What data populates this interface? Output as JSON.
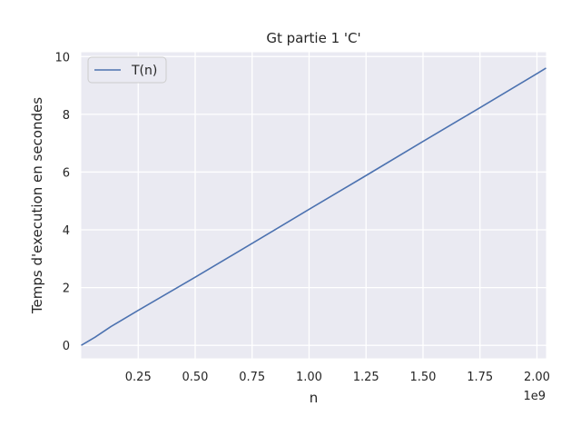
{
  "chart_data": {
    "type": "line",
    "title": "Gt partie 1 'C'",
    "xlabel": "n",
    "ylabel": "Temps d'execution en secondes",
    "x_offset_label": "1e9",
    "xlim": [
      0.0,
      2.04
    ],
    "ylim": [
      -0.45,
      10.15
    ],
    "x_ticks": [
      0.25,
      0.5,
      0.75,
      1.0,
      1.25,
      1.5,
      1.75,
      2.0
    ],
    "x_tick_labels": [
      "0.25",
      "0.50",
      "0.75",
      "1.00",
      "1.25",
      "1.50",
      "1.75",
      "2.00"
    ],
    "y_ticks": [
      0,
      2,
      4,
      6,
      8,
      10
    ],
    "y_tick_labels": [
      "0",
      "2",
      "4",
      "6",
      "8",
      "10"
    ],
    "grid": true,
    "legend_position": "top-left",
    "series": [
      {
        "name": "T(n)",
        "color": "#4c72b0",
        "x": [
          0.0,
          0.06,
          0.13,
          0.25,
          0.5,
          0.75,
          1.0,
          1.25,
          1.5,
          1.75,
          2.0,
          2.04
        ],
        "y": [
          0.0,
          0.28,
          0.65,
          1.21,
          2.36,
          3.53,
          4.71,
          5.88,
          7.06,
          8.23,
          9.41,
          9.6
        ]
      }
    ]
  }
}
